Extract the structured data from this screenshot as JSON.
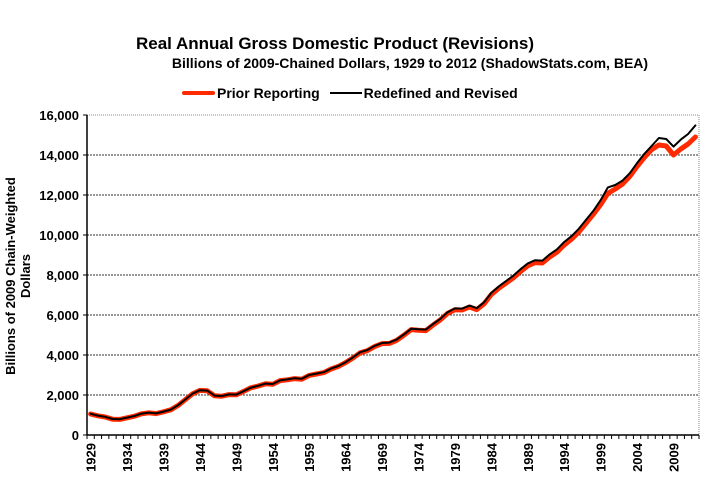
{
  "chart_data": {
    "type": "line",
    "title": "Real Annual Gross Domestic Product (Revisions)",
    "subtitle": "Billions of 2009-Chained Dollars, 1929 to 2012 (ShadowStats.com, BEA)",
    "xlabel": "",
    "ylabel": "Billions of 2009 Chain-Weighted Dollars",
    "ylim": [
      0,
      16000
    ],
    "yticks": [
      0,
      2000,
      4000,
      6000,
      8000,
      10000,
      12000,
      14000,
      16000
    ],
    "ytick_labels": [
      "0",
      "2,000",
      "4,000",
      "6,000",
      "8,000",
      "10,000",
      "12,000",
      "14,000",
      "16,000"
    ],
    "xtick_labels": [
      "1929",
      "1934",
      "1939",
      "1944",
      "1949",
      "1954",
      "1959",
      "1964",
      "1969",
      "1974",
      "1979",
      "1984",
      "1989",
      "1994",
      "1999",
      "2004",
      "2009"
    ],
    "grid": true,
    "legend_position": "top-center",
    "x": [
      1929,
      1930,
      1931,
      1932,
      1933,
      1934,
      1935,
      1936,
      1937,
      1938,
      1939,
      1940,
      1941,
      1942,
      1943,
      1944,
      1945,
      1946,
      1947,
      1948,
      1949,
      1950,
      1951,
      1952,
      1953,
      1954,
      1955,
      1956,
      1957,
      1958,
      1959,
      1960,
      1961,
      1962,
      1963,
      1964,
      1965,
      1966,
      1967,
      1968,
      1969,
      1970,
      1971,
      1972,
      1973,
      1974,
      1975,
      1976,
      1977,
      1978,
      1979,
      1980,
      1981,
      1982,
      1983,
      1984,
      1985,
      1986,
      1987,
      1988,
      1989,
      1990,
      1991,
      1992,
      1993,
      1994,
      1995,
      1996,
      1997,
      1998,
      1999,
      2000,
      2001,
      2002,
      2003,
      2004,
      2005,
      2006,
      2007,
      2008,
      2009,
      2010,
      2011,
      2012
    ],
    "series": [
      {
        "name": "Prior Reporting",
        "color": "#ff2a00",
        "values": [
          1050,
          960,
          900,
          790,
          780,
          860,
          940,
          1060,
          1110,
          1070,
          1160,
          1260,
          1480,
          1770,
          2060,
          2230,
          2210,
          1960,
          1940,
          2020,
          2010,
          2180,
          2360,
          2450,
          2560,
          2540,
          2720,
          2760,
          2820,
          2790,
          2980,
          3050,
          3120,
          3300,
          3430,
          3620,
          3850,
          4110,
          4220,
          4430,
          4570,
          4580,
          4730,
          4990,
          5270,
          5240,
          5220,
          5500,
          5760,
          6080,
          6260,
          6250,
          6400,
          6270,
          6560,
          7030,
          7330,
          7590,
          7850,
          8170,
          8460,
          8620,
          8600,
          8900,
          9140,
          9500,
          9790,
          10150,
          10590,
          11040,
          11520,
          12080,
          12300,
          12550,
          12930,
          13430,
          13880,
          14270,
          14500,
          14450,
          14000,
          14300,
          14550,
          14900
        ]
      },
      {
        "name": "Redefined and Revised",
        "color": "#000000",
        "values": [
          1060,
          970,
          910,
          800,
          790,
          870,
          950,
          1070,
          1120,
          1080,
          1170,
          1270,
          1490,
          1780,
          2070,
          2240,
          2220,
          1970,
          1950,
          2030,
          2020,
          2190,
          2370,
          2460,
          2570,
          2550,
          2730,
          2780,
          2840,
          2810,
          3000,
          3070,
          3140,
          3320,
          3450,
          3640,
          3880,
          4140,
          4250,
          4460,
          4600,
          4620,
          4770,
          5030,
          5310,
          5290,
          5270,
          5550,
          5810,
          6140,
          6330,
          6320,
          6470,
          6340,
          6640,
          7110,
          7420,
          7690,
          7960,
          8290,
          8580,
          8740,
          8720,
          9030,
          9280,
          9650,
          9940,
          10310,
          10760,
          11210,
          11740,
          12380,
          12500,
          12720,
          13090,
          13600,
          14060,
          14450,
          14850,
          14800,
          14420,
          14770,
          15050,
          15480
        ]
      }
    ]
  }
}
